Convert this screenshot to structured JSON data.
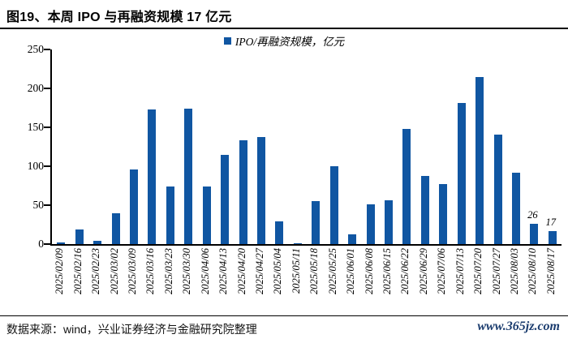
{
  "page": {
    "title": "图19、本周 IPO 与再融资规模 17 亿元",
    "footer": {
      "source": "数据来源：wind，兴业证券经济与金融研究院整理",
      "website": "www.365jz.com",
      "website_color": "#1B3C6E"
    }
  },
  "chart_data": {
    "type": "bar",
    "title": "图19、本周 IPO 与再融资规模 17 亿元",
    "legend": "IPO/再融资规模，亿元",
    "legend_position": "top-center",
    "bar_color": "#1056A2",
    "grid": false,
    "ylim": [
      0,
      250
    ],
    "yticks": [
      0,
      50,
      100,
      150,
      200,
      250
    ],
    "xlabel": "",
    "ylabel": "",
    "categories": [
      "2025/02/09",
      "2025/02/16",
      "2025/02/23",
      "2025/03/02",
      "2025/03/09",
      "2025/03/16",
      "2025/03/23",
      "2025/03/30",
      "2025/04/06",
      "2025/04/13",
      "2025/04/20",
      "2025/04/27",
      "2025/05/04",
      "2025/05/11",
      "2025/05/18",
      "2025/05/25",
      "2025/06/01",
      "2025/06/08",
      "2025/06/15",
      "2025/06/22",
      "2025/06/29",
      "2025/07/06",
      "2025/07/13",
      "2025/07/20",
      "2025/07/27",
      "2025/08/03",
      "2025/08/10",
      "2025/08/17"
    ],
    "values": [
      2,
      19,
      4,
      40,
      96,
      173,
      74,
      174,
      74,
      115,
      133,
      137,
      29,
      1,
      55,
      100,
      12,
      51,
      56,
      148,
      88,
      77,
      181,
      215,
      141,
      92,
      26,
      17
    ],
    "point_labels": [
      {
        "index": 26,
        "text": "26"
      },
      {
        "index": 27,
        "text": "17"
      }
    ]
  }
}
